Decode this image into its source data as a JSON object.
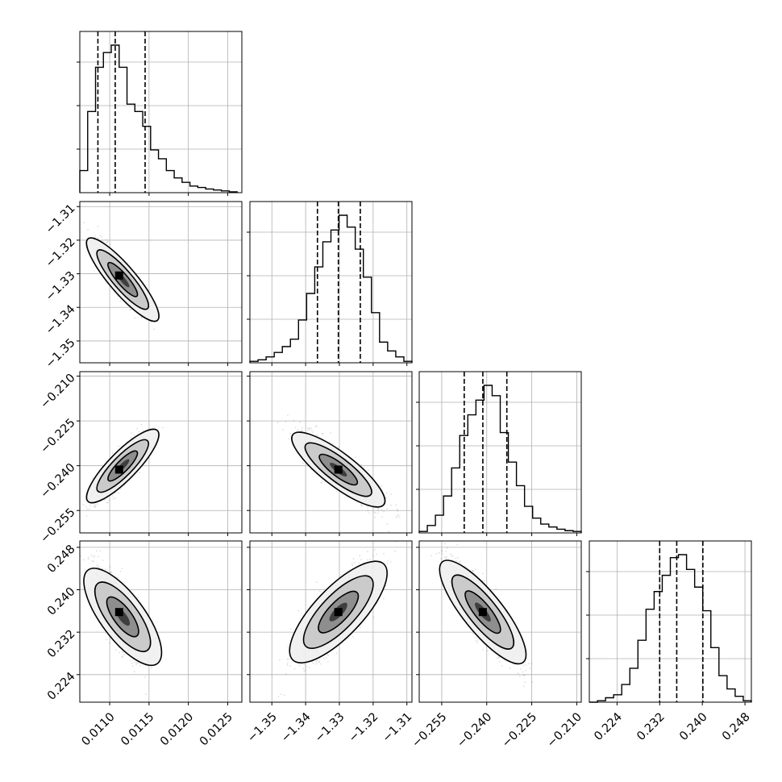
{
  "chart_data": {
    "type": "corner",
    "title": "",
    "grid": true,
    "parameters": [
      {
        "label": "",
        "range": [
          0.01062,
          0.01268
        ],
        "ticks": [
          0.011,
          0.0115,
          0.012,
          0.0125
        ],
        "tick_labels": [
          "0.0110",
          "0.0115",
          "0.0120",
          "0.0125"
        ],
        "quantiles": [
          0.01085,
          0.01107,
          0.01145
        ],
        "histogram": {
          "bin_edges": [
            0.01062,
            0.01072,
            0.01082,
            0.01092,
            0.01102,
            0.01112,
            0.01122,
            0.01132,
            0.01142,
            0.01152,
            0.01162,
            0.01172,
            0.01182,
            0.01192,
            0.01202,
            0.01212,
            0.01222,
            0.01232,
            0.01242,
            0.01252,
            0.01262
          ],
          "values": [
            0.15,
            0.55,
            0.85,
            0.95,
            1.0,
            0.85,
            0.6,
            0.55,
            0.45,
            0.29,
            0.23,
            0.15,
            0.1,
            0.07,
            0.045,
            0.035,
            0.025,
            0.018,
            0.012,
            0.006
          ]
        }
      },
      {
        "label": "",
        "range": [
          -1.3565,
          -1.3085
        ],
        "ticks": [
          -1.35,
          -1.34,
          -1.33,
          -1.32,
          -1.31
        ],
        "tick_labels": [
          "−1.35",
          "−1.34",
          "−1.33",
          "−1.32",
          "−1.31"
        ],
        "quantiles": [
          -1.3365,
          -1.3303,
          -1.3238
        ],
        "histogram": {
          "bin_edges": [
            -1.3565,
            -1.3541,
            -1.3517,
            -1.3493,
            -1.3469,
            -1.3445,
            -1.3421,
            -1.3397,
            -1.3373,
            -1.3349,
            -1.3325,
            -1.3301,
            -1.3277,
            -1.3253,
            -1.3229,
            -1.3205,
            -1.3181,
            -1.3157,
            -1.3133,
            -1.3109,
            -1.3085
          ],
          "values": [
            0.01,
            0.02,
            0.04,
            0.07,
            0.11,
            0.16,
            0.29,
            0.47,
            0.65,
            0.82,
            0.9,
            1.0,
            0.92,
            0.77,
            0.58,
            0.34,
            0.14,
            0.08,
            0.04,
            0.01
          ]
        }
      },
      {
        "label": "",
        "range": [
          -0.2625,
          -0.2085
        ],
        "ticks": [
          -0.255,
          -0.24,
          -0.225,
          -0.21
        ],
        "tick_labels": [
          "−0.255",
          "−0.240",
          "−0.225",
          "−0.210"
        ],
        "quantiles": [
          -0.2475,
          -0.2413,
          -0.2333
        ],
        "histogram": {
          "bin_edges": [
            -0.2625,
            -0.2598,
            -0.2571,
            -0.2544,
            -0.2517,
            -0.249,
            -0.2463,
            -0.2436,
            -0.2409,
            -0.2382,
            -0.2355,
            -0.2328,
            -0.2301,
            -0.2274,
            -0.2247,
            -0.222,
            -0.2193,
            -0.2166,
            -0.2139,
            -0.2112,
            -0.2085
          ],
          "values": [
            0.01,
            0.05,
            0.12,
            0.25,
            0.44,
            0.66,
            0.8,
            0.9,
            1.0,
            0.93,
            0.68,
            0.48,
            0.32,
            0.18,
            0.1,
            0.06,
            0.04,
            0.025,
            0.015,
            0.01
          ]
        }
      },
      {
        "label": "",
        "range": [
          0.2188,
          0.2492
        ],
        "ticks": [
          0.224,
          0.232,
          0.24,
          0.248
        ],
        "tick_labels": [
          "0.224",
          "0.232",
          "0.240",
          "0.248"
        ],
        "quantiles": [
          0.232,
          0.2352,
          0.2401
        ],
        "histogram": {
          "bin_edges": [
            0.2188,
            0.22032,
            0.22184,
            0.22336,
            0.22488,
            0.2264,
            0.22792,
            0.22944,
            0.23096,
            0.23248,
            0.234,
            0.23552,
            0.23704,
            0.23856,
            0.24008,
            0.2416,
            0.24312,
            0.24464,
            0.24616,
            0.24768,
            0.2492
          ],
          "values": [
            0.0,
            0.01,
            0.03,
            0.05,
            0.12,
            0.23,
            0.42,
            0.63,
            0.75,
            0.86,
            0.98,
            1.0,
            0.9,
            0.78,
            0.62,
            0.37,
            0.18,
            0.09,
            0.04,
            0.01
          ]
        }
      }
    ],
    "pairs": [
      {
        "x": 0,
        "y": 1,
        "mean": [
          0.01112,
          -1.3305
        ],
        "sd": [
          0.00018,
          0.0055
        ],
        "rho": -0.9,
        "skew_x": 2.5
      },
      {
        "x": 0,
        "y": 2,
        "mean": [
          0.01112,
          -0.2413
        ],
        "sd": [
          0.00018,
          0.0055
        ],
        "rho": 0.88,
        "skew_x": 2.5
      },
      {
        "x": 0,
        "y": 3,
        "mean": [
          0.01112,
          0.2358
        ],
        "sd": [
          0.00018,
          0.0045
        ],
        "rho": -0.8,
        "skew_x": 2.5
      },
      {
        "x": 1,
        "y": 2,
        "mean": [
          -1.3303,
          -0.2413
        ],
        "sd": [
          0.0055,
          0.0055
        ],
        "rho": -0.87
      },
      {
        "x": 1,
        "y": 3,
        "mean": [
          -1.3303,
          0.2358
        ],
        "sd": [
          0.0055,
          0.0045
        ],
        "rho": 0.82
      },
      {
        "x": 2,
        "y": 3,
        "mean": [
          -0.2413,
          0.2358
        ],
        "sd": [
          0.0055,
          0.0045
        ],
        "rho": -0.86
      }
    ]
  }
}
